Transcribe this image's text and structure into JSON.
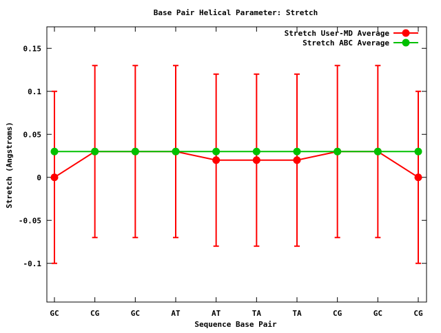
{
  "chart_data": {
    "type": "line",
    "title": "Base Pair Helical Parameter: Stretch",
    "xlabel": "Sequence Base Pair",
    "ylabel": "Stretch (Angstroms)",
    "categories": [
      "GC",
      "CG",
      "GC",
      "AT",
      "AT",
      "TA",
      "TA",
      "CG",
      "GC",
      "CG"
    ],
    "ylim": [
      -0.145,
      0.175
    ],
    "yticks": [
      -0.1,
      -0.05,
      0,
      0.05,
      0.1,
      0.15
    ],
    "ytick_labels": [
      "-0.1",
      "-0.05",
      "0",
      "0.05",
      "0.1",
      "0.15"
    ],
    "grid": false,
    "legend_position": "top-right",
    "series": [
      {
        "name": "Stretch User-MD Average",
        "color": "#ff0000",
        "values": [
          0.0,
          0.03,
          0.03,
          0.03,
          0.02,
          0.02,
          0.02,
          0.03,
          0.03,
          0.0
        ],
        "error_low": [
          -0.1,
          -0.07,
          -0.07,
          -0.07,
          -0.08,
          -0.08,
          -0.08,
          -0.07,
          -0.07,
          -0.1
        ],
        "error_high": [
          0.1,
          0.13,
          0.13,
          0.13,
          0.12,
          0.12,
          0.12,
          0.13,
          0.13,
          0.1
        ]
      },
      {
        "name": "Stretch ABC Average",
        "color": "#00c000",
        "values": [
          0.03,
          0.03,
          0.03,
          0.03,
          0.03,
          0.03,
          0.03,
          0.03,
          0.03,
          0.03
        ]
      }
    ]
  }
}
